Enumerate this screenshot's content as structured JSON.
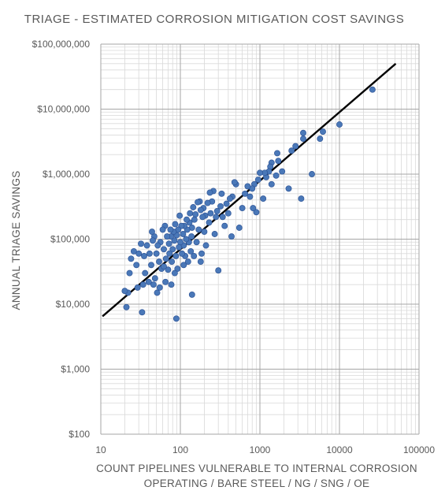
{
  "chart_data": {
    "type": "scatter",
    "title": "TRIAGE - ESTIMATED CORROSION MITIGATION COST SAVINGS",
    "xlabel_lines": [
      "COUNT PIPELINES VULNERABLE TO INTERNAL CORROSION",
      "OPERATING / BARE STEEL / NG / SNG / OE"
    ],
    "ylabel": "ANNUAL TRIAGE SAVINGS",
    "x_scale": "log",
    "y_scale": "log",
    "xlim": [
      10,
      100000
    ],
    "ylim": [
      100,
      100000000
    ],
    "x_ticks": [
      10,
      100,
      1000,
      10000,
      100000
    ],
    "x_tick_labels": [
      "10",
      "100",
      "1000",
      "10000",
      "100000"
    ],
    "y_ticks": [
      100,
      1000,
      10000,
      100000,
      1000000,
      10000000,
      100000000
    ],
    "y_tick_labels": [
      "$100",
      "$1,000",
      "$10,000",
      "$100,000",
      "$1,000,000",
      "$10,000,000",
      "$100,000,000"
    ],
    "grid": true,
    "marker_color": "#4A78B8",
    "trend_color": "#000000",
    "trendline": {
      "x": [
        10.5,
        51000
      ],
      "y": [
        6500,
        50000000
      ]
    },
    "points": [
      [
        26000,
        20000000
      ],
      [
        10000,
        5800000
      ],
      [
        6200,
        4500000
      ],
      [
        5700,
        3500000
      ],
      [
        4500,
        1000000
      ],
      [
        3500,
        4300000
      ],
      [
        3500,
        3500000
      ],
      [
        3300,
        420000
      ],
      [
        2800,
        2700000
      ],
      [
        2500,
        2300000
      ],
      [
        2300,
        600000
      ],
      [
        1900,
        1100000
      ],
      [
        1700,
        1600000
      ],
      [
        1650,
        2100000
      ],
      [
        1600,
        950000
      ],
      [
        1400,
        1500000
      ],
      [
        1400,
        700000
      ],
      [
        1350,
        1300000
      ],
      [
        1300,
        1100000
      ],
      [
        1200,
        900000
      ],
      [
        1150,
        1050000
      ],
      [
        1100,
        420000
      ],
      [
        1000,
        1050000
      ],
      [
        950,
        820000
      ],
      [
        900,
        260000
      ],
      [
        850,
        700000
      ],
      [
        820,
        300000
      ],
      [
        800,
        600000
      ],
      [
        750,
        450000
      ],
      [
        700,
        650000
      ],
      [
        650,
        500000
      ],
      [
        600,
        300000
      ],
      [
        550,
        150000
      ],
      [
        500,
        700000
      ],
      [
        480,
        750000
      ],
      [
        450,
        450000
      ],
      [
        440,
        110000
      ],
      [
        420,
        420000
      ],
      [
        400,
        250000
      ],
      [
        380,
        350000
      ],
      [
        360,
        160000
      ],
      [
        340,
        220000
      ],
      [
        330,
        500000
      ],
      [
        320,
        320000
      ],
      [
        300,
        33000
      ],
      [
        290,
        270000
      ],
      [
        280,
        220000
      ],
      [
        270,
        120000
      ],
      [
        260,
        550000
      ],
      [
        250,
        380000
      ],
      [
        240,
        250000
      ],
      [
        235,
        520000
      ],
      [
        230,
        180000
      ],
      [
        220,
        360000
      ],
      [
        210,
        80000
      ],
      [
        205,
        230000
      ],
      [
        200,
        130000
      ],
      [
        195,
        300000
      ],
      [
        190,
        220000
      ],
      [
        185,
        60000
      ],
      [
        180,
        280000
      ],
      [
        175,
        380000
      ],
      [
        170,
        140000
      ],
      [
        165,
        370000
      ],
      [
        160,
        90000
      ],
      [
        155,
        240000
      ],
      [
        150,
        200000
      ],
      [
        148,
        55000
      ],
      [
        145,
        310000
      ],
      [
        140,
        150000
      ],
      [
        138,
        110000
      ],
      [
        135,
        65000
      ],
      [
        132,
        250000
      ],
      [
        130,
        180000
      ],
      [
        128,
        90000
      ],
      [
        125,
        45000
      ],
      [
        122,
        140000
      ],
      [
        120,
        200000
      ],
      [
        118,
        100000
      ],
      [
        115,
        55000
      ],
      [
        112,
        160000
      ],
      [
        110,
        80000
      ],
      [
        108,
        120000
      ],
      [
        105,
        60000
      ],
      [
        103,
        160000
      ],
      [
        100,
        90000
      ],
      [
        98,
        230000
      ],
      [
        96,
        75000
      ],
      [
        94,
        140000
      ],
      [
        92,
        35000
      ],
      [
        90,
        115000
      ],
      [
        89,
        6000
      ],
      [
        88,
        55000
      ],
      [
        86,
        170000
      ],
      [
        85,
        30000
      ],
      [
        84,
        95000
      ],
      [
        82,
        130000
      ],
      [
        80,
        70000
      ],
      [
        78,
        45000
      ],
      [
        77,
        20000
      ],
      [
        76,
        110000
      ],
      [
        75,
        140000
      ],
      [
        73,
        60000
      ],
      [
        72,
        85000
      ],
      [
        70,
        34000
      ],
      [
        68,
        110000
      ],
      [
        66,
        50000
      ],
      [
        65,
        22000
      ],
      [
        64,
        160000
      ],
      [
        62,
        70000
      ],
      [
        60,
        140000
      ],
      [
        58,
        35000
      ],
      [
        56,
        90000
      ],
      [
        55,
        18000
      ],
      [
        54,
        45000
      ],
      [
        52,
        80000
      ],
      [
        51,
        15000
      ],
      [
        50,
        60000
      ],
      [
        48,
        25000
      ],
      [
        47,
        110000
      ],
      [
        46,
        20000
      ],
      [
        45,
        95000
      ],
      [
        43,
        40000
      ],
      [
        41,
        60000
      ],
      [
        40,
        22000
      ],
      [
        38,
        80000
      ],
      [
        36,
        30000
      ],
      [
        35,
        55000
      ],
      [
        34,
        20000
      ],
      [
        33,
        7500
      ],
      [
        32,
        85000
      ],
      [
        30,
        60000
      ],
      [
        29,
        18000
      ],
      [
        28,
        40000
      ],
      [
        26,
        65000
      ],
      [
        24,
        50000
      ],
      [
        23,
        30000
      ],
      [
        22,
        15000
      ],
      [
        21,
        9000
      ],
      [
        20,
        16000
      ],
      [
        44,
        130000
      ],
      [
        62,
        38000
      ],
      [
        140,
        14000
      ],
      [
        110,
        40000
      ],
      [
        180,
        45000
      ]
    ]
  }
}
